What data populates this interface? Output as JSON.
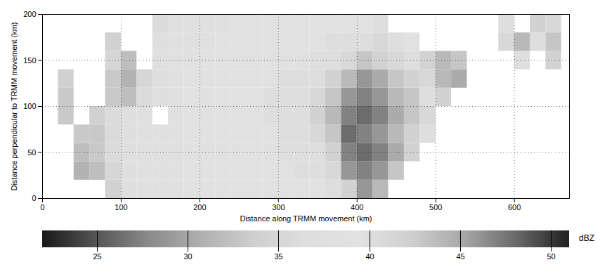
{
  "chart_data": {
    "type": "heatmap",
    "xlabel": "Distance along TRMM movement (km)",
    "ylabel": "Distance perpendicular to TRMM movement (km)",
    "xlim": [
      0,
      670
    ],
    "ylim": [
      0,
      200
    ],
    "xticks": [
      0,
      100,
      200,
      300,
      400,
      500,
      600
    ],
    "yticks": [
      0,
      50,
      100,
      150,
      200
    ],
    "grid": true,
    "cells": {
      "x_bins": [
        0,
        20,
        40,
        60,
        80,
        100,
        120,
        140,
        160,
        180,
        200,
        220,
        240,
        260,
        280,
        300,
        320,
        340,
        360,
        380,
        400,
        420,
        440,
        460,
        480,
        500,
        520,
        540,
        560,
        580,
        600,
        620,
        640,
        660,
        680
      ],
      "y_bins": [
        0,
        20,
        40,
        60,
        80,
        100,
        120,
        140,
        160,
        180,
        200
      ],
      "values": [
        [
          null,
          null,
          null,
          null,
          34,
          37,
          38,
          38,
          38,
          39,
          39,
          39,
          39,
          39,
          39,
          39,
          39,
          39,
          40,
          42,
          46,
          44,
          null,
          null,
          null,
          null,
          null,
          null,
          null,
          null,
          null,
          null,
          null,
          null
        ],
        [
          null,
          null,
          31,
          32,
          35,
          37,
          38,
          38,
          38,
          39,
          39,
          39,
          39,
          39,
          39,
          39,
          40,
          40,
          41,
          46,
          47,
          46,
          43,
          null,
          null,
          null,
          null,
          null,
          null,
          null,
          null,
          null,
          null,
          null
        ],
        [
          null,
          null,
          32,
          33,
          36,
          37,
          38,
          38,
          38,
          39,
          39,
          39,
          39,
          39,
          39,
          40,
          40,
          40,
          42,
          47,
          48,
          47,
          45,
          42,
          null,
          null,
          null,
          null,
          null,
          null,
          null,
          null,
          null,
          null
        ],
        [
          null,
          null,
          33,
          33,
          36,
          37,
          38,
          38,
          38,
          39,
          39,
          39,
          39,
          39,
          39,
          40,
          40,
          41,
          43,
          48,
          47,
          46,
          44,
          42,
          40,
          null,
          null,
          null,
          null,
          null,
          null,
          null,
          null,
          null
        ],
        [
          null,
          33,
          null,
          34,
          36,
          37,
          38,
          null,
          38,
          39,
          39,
          39,
          39,
          39,
          40,
          40,
          40,
          42,
          44,
          47,
          48,
          47,
          45,
          43,
          41,
          null,
          null,
          null,
          null,
          null,
          null,
          null,
          null,
          null
        ],
        [
          null,
          33,
          null,
          null,
          33,
          32,
          36,
          37,
          38,
          39,
          39,
          39,
          39,
          39,
          40,
          40,
          40,
          41,
          43,
          46,
          47,
          46,
          44,
          43,
          40,
          42,
          null,
          null,
          null,
          null,
          null,
          null,
          null,
          null
        ],
        [
          null,
          34,
          null,
          null,
          33,
          31,
          35,
          37,
          38,
          39,
          39,
          39,
          39,
          39,
          39,
          40,
          40,
          40,
          42,
          44,
          46,
          45,
          43,
          42,
          41,
          44,
          45,
          null,
          null,
          null,
          null,
          null,
          null,
          null
        ],
        [
          null,
          null,
          null,
          null,
          35,
          32,
          null,
          37,
          38,
          38,
          39,
          39,
          39,
          39,
          39,
          39,
          39,
          40,
          40,
          41,
          43,
          42,
          41,
          40,
          42,
          44,
          43,
          null,
          null,
          null,
          40,
          null,
          42,
          null
        ],
        [
          null,
          null,
          null,
          null,
          34,
          null,
          null,
          37,
          38,
          38,
          38,
          39,
          39,
          39,
          39,
          39,
          39,
          39,
          40,
          40,
          40,
          41,
          40,
          39,
          null,
          null,
          null,
          null,
          null,
          41,
          44,
          40,
          43,
          null
        ],
        [
          null,
          null,
          null,
          null,
          null,
          null,
          null,
          36,
          37,
          38,
          38,
          38,
          39,
          39,
          39,
          39,
          39,
          39,
          39,
          39,
          39,
          40,
          null,
          null,
          null,
          null,
          null,
          null,
          null,
          40,
          null,
          42,
          41,
          null
        ]
      ]
    },
    "colorbar": {
      "label": "dBZ",
      "range": [
        22,
        51
      ],
      "ticks": [
        25,
        30,
        35,
        40,
        45,
        50
      ]
    }
  }
}
